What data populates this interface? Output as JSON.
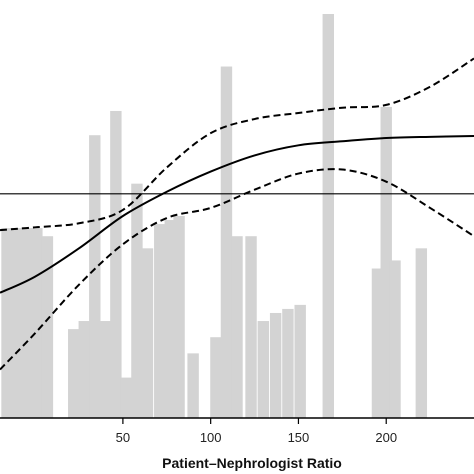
{
  "chart_data": {
    "type": "bar",
    "xlabel": "Patient–Nephrologist Ratio",
    "xlim": [
      -20,
      250
    ],
    "ylim": [
      0,
      100
    ],
    "x_ticks": [
      {
        "value": 50,
        "label": "50"
      },
      {
        "value": 100,
        "label": "100"
      },
      {
        "value": 150,
        "label": "150"
      },
      {
        "value": 200,
        "label": "200"
      }
    ],
    "bar_width": 6.5,
    "histogram_bars": [
      {
        "x": -16,
        "value": 47
      },
      {
        "x": -10,
        "value": 47
      },
      {
        "x": -4,
        "value": 47
      },
      {
        "x": 1,
        "value": 47
      },
      {
        "x": 7,
        "value": 45
      },
      {
        "x": 22,
        "value": 22
      },
      {
        "x": 28,
        "value": 24
      },
      {
        "x": 34,
        "value": 70
      },
      {
        "x": 40,
        "value": 24
      },
      {
        "x": 46,
        "value": 76
      },
      {
        "x": 52,
        "value": 10
      },
      {
        "x": 58,
        "value": 58
      },
      {
        "x": 64,
        "value": 42
      },
      {
        "x": 71,
        "value": 48
      },
      {
        "x": 77,
        "value": 49
      },
      {
        "x": 82,
        "value": 50
      },
      {
        "x": 90,
        "value": 16
      },
      {
        "x": 103,
        "value": 20
      },
      {
        "x": 109,
        "value": 87
      },
      {
        "x": 115,
        "value": 45
      },
      {
        "x": 123,
        "value": 45
      },
      {
        "x": 130,
        "value": 24
      },
      {
        "x": 137,
        "value": 26
      },
      {
        "x": 144,
        "value": 27
      },
      {
        "x": 151,
        "value": 28
      },
      {
        "x": 167,
        "value": 100
      },
      {
        "x": 195,
        "value": 37
      },
      {
        "x": 200,
        "value": 77
      },
      {
        "x": 205,
        "value": 39
      },
      {
        "x": 220,
        "value": 42
      }
    ],
    "reference_line_y": 55.5,
    "series": [
      {
        "style": "solid",
        "x": [
          -20,
          0,
          25,
          50,
          75,
          100,
          125,
          150,
          175,
          200,
          225,
          250
        ],
        "y": [
          31,
          35,
          42,
          50,
          56,
          61,
          65,
          67.5,
          68.5,
          69.3,
          69.6,
          69.8
        ]
      },
      {
        "style": "dashed",
        "x": [
          -20,
          0,
          25,
          50,
          75,
          100,
          125,
          150,
          175,
          200,
          225,
          250
        ],
        "y": [
          46.5,
          47.2,
          48.2,
          51.5,
          62,
          70.5,
          74,
          75.5,
          76.8,
          77.5,
          82,
          89
        ]
      },
      {
        "style": "dashed",
        "x": [
          -20,
          0,
          25,
          50,
          75,
          100,
          125,
          150,
          175,
          200,
          225,
          250
        ],
        "y": [
          12,
          21,
          33,
          43,
          49.5,
          52,
          56.5,
          60.5,
          61.5,
          58.5,
          52,
          45
        ]
      }
    ]
  }
}
